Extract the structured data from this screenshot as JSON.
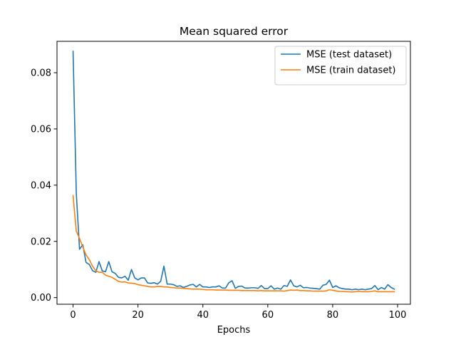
{
  "chart_data": {
    "type": "line",
    "title": "Mean squared error",
    "xlabel": "Epochs",
    "ylabel": "",
    "xlim": [
      -4.95,
      103.95
    ],
    "ylim": [
      -0.00236,
      0.09116
    ],
    "x_ticks": [
      0,
      20,
      40,
      60,
      80,
      100
    ],
    "x_tick_labels": [
      "0",
      "20",
      "40",
      "60",
      "80",
      "100"
    ],
    "y_ticks": [
      0.0,
      0.02,
      0.04,
      0.06,
      0.08
    ],
    "y_tick_labels": [
      "0.00",
      "0.02",
      "0.04",
      "0.06",
      "0.08"
    ],
    "grid": false,
    "legend_position": "top-right",
    "x": [
      0,
      1,
      2,
      3,
      4,
      5,
      6,
      7,
      8,
      9,
      10,
      11,
      12,
      13,
      14,
      15,
      16,
      17,
      18,
      19,
      20,
      21,
      22,
      23,
      24,
      25,
      26,
      27,
      28,
      29,
      30,
      31,
      32,
      33,
      34,
      35,
      36,
      37,
      38,
      39,
      40,
      41,
      42,
      43,
      44,
      45,
      46,
      47,
      48,
      49,
      50,
      51,
      52,
      53,
      54,
      55,
      56,
      57,
      58,
      59,
      60,
      61,
      62,
      63,
      64,
      65,
      66,
      67,
      68,
      69,
      70,
      71,
      72,
      73,
      74,
      75,
      76,
      77,
      78,
      79,
      80,
      81,
      82,
      83,
      84,
      85,
      86,
      87,
      88,
      89,
      90,
      91,
      92,
      93,
      94,
      95,
      96,
      97,
      98,
      99
    ],
    "series": [
      {
        "name": "MSE (test dataset)",
        "color": "#1f77b4",
        "values": [
          0.0876,
          0.037,
          0.0172,
          0.0188,
          0.0125,
          0.0118,
          0.0096,
          0.009,
          0.0128,
          0.0095,
          0.0092,
          0.0128,
          0.0092,
          0.0086,
          0.0072,
          0.007,
          0.0076,
          0.0062,
          0.01,
          0.007,
          0.0063,
          0.007,
          0.007,
          0.0052,
          0.0051,
          0.0053,
          0.0048,
          0.0058,
          0.0112,
          0.0048,
          0.0048,
          0.0046,
          0.004,
          0.0042,
          0.0036,
          0.004,
          0.0045,
          0.0047,
          0.0038,
          0.0047,
          0.0038,
          0.0038,
          0.0036,
          0.0038,
          0.0038,
          0.0042,
          0.0034,
          0.0034,
          0.0053,
          0.006,
          0.0033,
          0.004,
          0.0041,
          0.0034,
          0.0034,
          0.0035,
          0.0035,
          0.0033,
          0.0043,
          0.0032,
          0.0032,
          0.0042,
          0.003,
          0.0034,
          0.003,
          0.0043,
          0.004,
          0.0063,
          0.0042,
          0.0038,
          0.0044,
          0.0035,
          0.0036,
          0.0034,
          0.0033,
          0.0032,
          0.003,
          0.0044,
          0.0047,
          0.0062,
          0.0036,
          0.0042,
          0.0035,
          0.0032,
          0.003,
          0.003,
          0.0028,
          0.003,
          0.0028,
          0.003,
          0.0028,
          0.003,
          0.0032,
          0.0043,
          0.0028,
          0.0036,
          0.003,
          0.0046,
          0.0036,
          0.003
        ]
      },
      {
        "name": "MSE (train dataset)",
        "color": "#ff7f0e",
        "values": [
          0.0363,
          0.0236,
          0.021,
          0.018,
          0.0152,
          0.0135,
          0.0112,
          0.0096,
          0.009,
          0.009,
          0.008,
          0.0076,
          0.0072,
          0.0065,
          0.0058,
          0.0055,
          0.0056,
          0.0052,
          0.0051,
          0.005,
          0.0046,
          0.0044,
          0.0042,
          0.004,
          0.0038,
          0.0038,
          0.004,
          0.004,
          0.0038,
          0.0038,
          0.0036,
          0.0035,
          0.0034,
          0.0034,
          0.0033,
          0.0032,
          0.0031,
          0.003,
          0.003,
          0.003,
          0.0029,
          0.0028,
          0.0028,
          0.0028,
          0.0027,
          0.0027,
          0.0027,
          0.0027,
          0.0026,
          0.0026,
          0.0026,
          0.0026,
          0.0025,
          0.0025,
          0.0025,
          0.0025,
          0.0025,
          0.0024,
          0.0025,
          0.0024,
          0.0024,
          0.0024,
          0.0024,
          0.0024,
          0.0024,
          0.0023,
          0.0025,
          0.0027,
          0.0026,
          0.0027,
          0.0025,
          0.0025,
          0.0024,
          0.0024,
          0.0023,
          0.0023,
          0.0023,
          0.0023,
          0.0024,
          0.0028,
          0.0026,
          0.0024,
          0.0022,
          0.0022,
          0.0021,
          0.0021,
          0.002,
          0.0021,
          0.0022,
          0.0021,
          0.0021,
          0.0021,
          0.0022,
          0.0024,
          0.0021,
          0.0021,
          0.0021,
          0.0021,
          0.0021,
          0.0021
        ]
      }
    ]
  }
}
